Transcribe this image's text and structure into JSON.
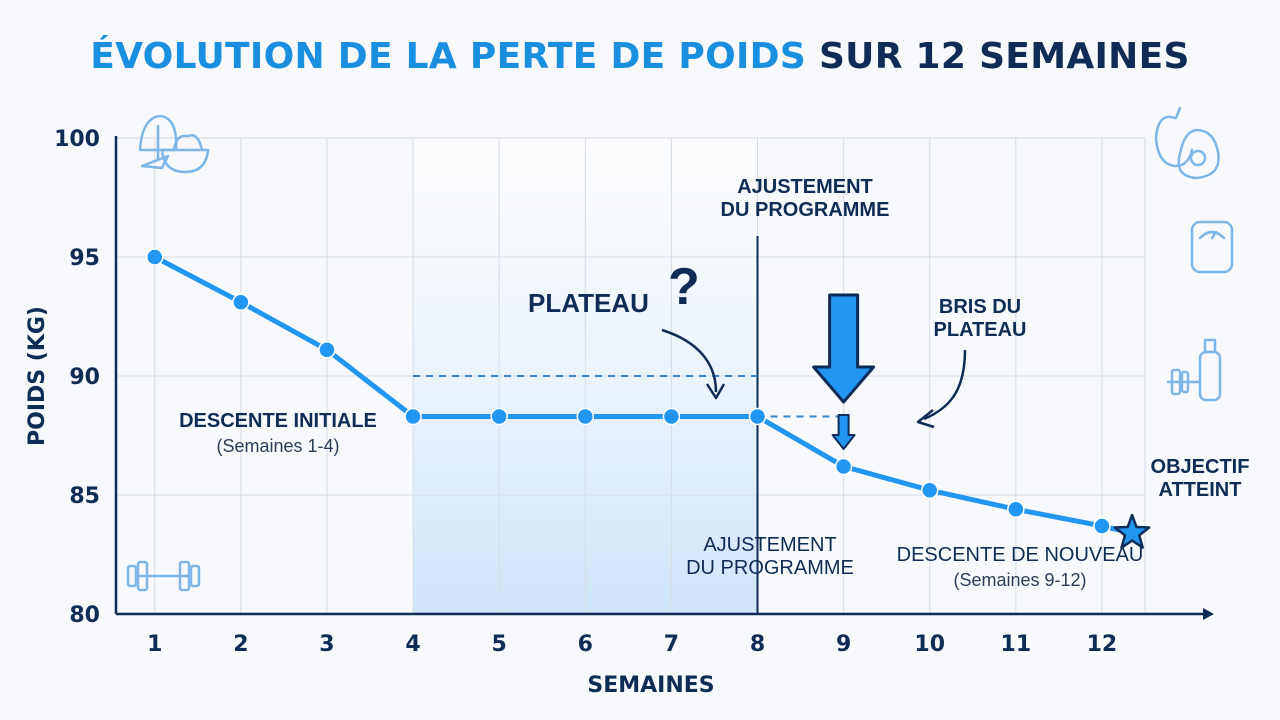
{
  "title": {
    "part1": "ÉVOLUTION DE LA PERTE DE POIDS",
    "part2": "SUR 12 SEMAINES"
  },
  "colors": {
    "accent": "#1a8fe0",
    "line": "#2196f3",
    "dark": "#0f2c56",
    "shade": "#d6e8fb",
    "icon": "#7fb6e8"
  },
  "chart_data": {
    "type": "line",
    "title": "ÉVOLUTION DE LA PERTE DE POIDS SUR 12 SEMAINES",
    "xlabel": "SEMAINES",
    "ylabel": "POIDS (KG)",
    "x": [
      1,
      2,
      3,
      4,
      5,
      6,
      7,
      8,
      9,
      10,
      11,
      12
    ],
    "xticks": [
      "1",
      "2",
      "3",
      "4",
      "5",
      "6",
      "7",
      "8",
      "9",
      "10",
      "11",
      "12"
    ],
    "yticks": [
      "80",
      "85",
      "90",
      "95",
      "100"
    ],
    "ylim": [
      80,
      100
    ],
    "xlim": [
      0.55,
      12.5
    ],
    "grid": true,
    "series": [
      {
        "values": [
          95,
          93.1,
          91.1,
          88.3,
          88.3,
          88.3,
          88.3,
          88.3,
          86.2,
          85.2,
          84.4,
          83.7
        ]
      }
    ],
    "goal_marker": {
      "x": 12.35,
      "y": 83.4
    },
    "plateau_band": {
      "from": 4,
      "to": 8
    },
    "dashed_ref_line": {
      "from": 4,
      "to": 8,
      "y": 90
    },
    "dashed_break_line": {
      "from": 8,
      "to": 9,
      "y": 88.3
    },
    "program_change_x": 8,
    "annotations": {
      "descent_initial": {
        "label": "DESCENTE INITIALE",
        "sub": "(Semaines 1-4)"
      },
      "plateau": {
        "label": "PLATEAU",
        "mark": "?"
      },
      "adjust_top": {
        "line1": "AJUSTEMENT",
        "line2": "DU PROGRAMME"
      },
      "adjust_bottom": {
        "line1": "AJUSTEMENT",
        "line2": "DU PROGRAMME"
      },
      "break_plateau": {
        "line1": "BRIS DU",
        "line2": "PLATEAU"
      },
      "goal": {
        "line1": "OBJECTIF",
        "line2": "ATTEINT"
      },
      "descent_again": {
        "label": "DESCENTE DE NOUVEAU",
        "sub": "(Semaines 9-12)"
      }
    }
  },
  "icons": [
    "salad-icon",
    "apple-avocado-icon",
    "scale-icon",
    "dumbbell-bottle-icon",
    "dumbbell-icon"
  ]
}
